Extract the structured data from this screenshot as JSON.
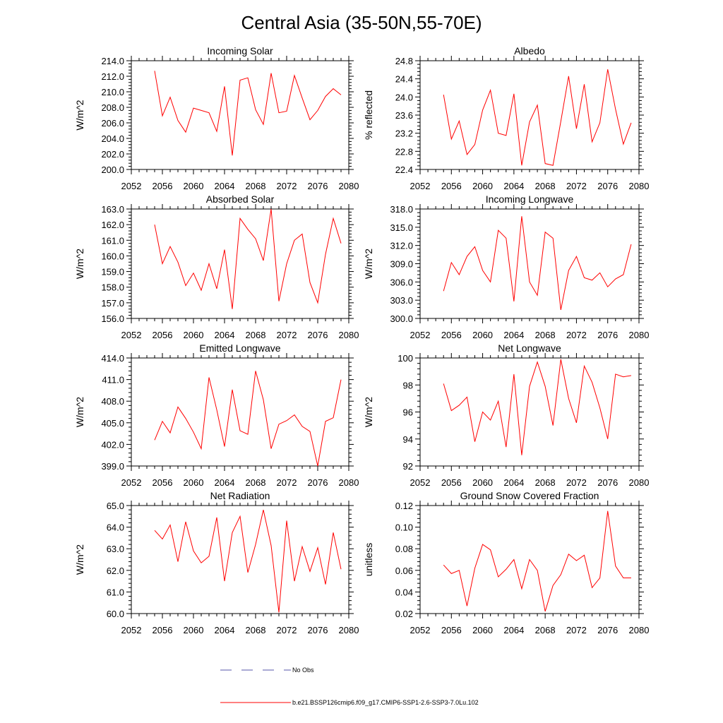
{
  "figure": {
    "title": "Central Asia (35-50N,55-70E)"
  },
  "colors": {
    "series": "#ff0000",
    "obs": "#5555aa",
    "axis": "#000000"
  },
  "legend": [
    {
      "label": "No Obs",
      "style": "dashed",
      "color": "#5555aa"
    },
    {
      "label": "b.e21.BSSP126cmip6.f09_g17.CMIP6-SSP1-2.6-SSP3-7.0Lu.102",
      "style": "solid",
      "color": "#ff0000"
    }
  ],
  "chart_data": [
    {
      "type": "line",
      "title": "Incoming Solar",
      "ylabel": "W/m^2",
      "xlim": [
        2052,
        2080
      ],
      "ylim": [
        200,
        214
      ],
      "xticks": [
        2052,
        2056,
        2060,
        2064,
        2068,
        2072,
        2076,
        2080
      ],
      "yticks": [
        "200.0",
        "202.0",
        "204.0",
        "206.0",
        "208.0",
        "210.0",
        "212.0",
        "214.0"
      ],
      "x": [
        2055,
        2056,
        2057,
        2058,
        2059,
        2060,
        2061,
        2062,
        2063,
        2064,
        2065,
        2066,
        2067,
        2068,
        2069,
        2070,
        2071,
        2072,
        2073,
        2074,
        2075,
        2076,
        2077,
        2078,
        2079
      ],
      "series": [
        {
          "values": [
            212.7,
            206.9,
            209.3,
            206.3,
            204.8,
            207.9,
            207.6,
            207.3,
            204.9,
            210.7,
            201.8,
            211.5,
            211.8,
            207.7,
            205.8,
            212.4,
            207.3,
            207.5,
            212.1,
            209.2,
            206.4,
            207.6,
            209.4,
            210.4,
            209.6
          ]
        }
      ]
    },
    {
      "type": "line",
      "title": "Albedo",
      "ylabel": "% reflected",
      "xlim": [
        2052,
        2080
      ],
      "ylim": [
        22.4,
        24.8
      ],
      "xticks": [
        2052,
        2056,
        2060,
        2064,
        2068,
        2072,
        2076,
        2080
      ],
      "yticks": [
        "22.4",
        "22.8",
        "23.2",
        "23.6",
        "24.0",
        "24.4",
        "24.8"
      ],
      "x": [
        2055,
        2056,
        2057,
        2058,
        2059,
        2060,
        2061,
        2062,
        2063,
        2064,
        2065,
        2066,
        2067,
        2068,
        2069,
        2070,
        2071,
        2072,
        2073,
        2074,
        2075,
        2076,
        2077,
        2078,
        2079
      ],
      "series": [
        {
          "values": [
            24.05,
            23.07,
            23.47,
            22.73,
            22.95,
            23.71,
            24.15,
            23.2,
            23.15,
            24.07,
            22.49,
            23.45,
            23.82,
            22.53,
            22.49,
            23.46,
            24.46,
            23.3,
            24.28,
            23.01,
            23.43,
            24.61,
            23.73,
            22.96,
            23.43
          ]
        }
      ]
    },
    {
      "type": "line",
      "title": "Absorbed Solar",
      "ylabel": "W/m^2",
      "xlim": [
        2052,
        2080
      ],
      "ylim": [
        156,
        163
      ],
      "xticks": [
        2052,
        2056,
        2060,
        2064,
        2068,
        2072,
        2076,
        2080
      ],
      "yticks": [
        "156.0",
        "157.0",
        "158.0",
        "159.0",
        "160.0",
        "161.0",
        "162.0",
        "163.0"
      ],
      "x": [
        2055,
        2056,
        2057,
        2058,
        2059,
        2060,
        2061,
        2062,
        2063,
        2064,
        2065,
        2066,
        2067,
        2068,
        2069,
        2070,
        2071,
        2072,
        2073,
        2074,
        2075,
        2076,
        2077,
        2078,
        2079
      ],
      "series": [
        {
          "values": [
            162.0,
            159.5,
            160.6,
            159.6,
            158.1,
            158.9,
            157.8,
            159.5,
            157.9,
            160.4,
            156.6,
            162.4,
            161.7,
            161.1,
            159.7,
            163.0,
            157.1,
            159.5,
            161.0,
            161.4,
            158.3,
            157.0,
            160.1,
            162.4,
            160.8
          ]
        }
      ]
    },
    {
      "type": "line",
      "title": "Incoming Longwave",
      "ylabel": "W/m^2",
      "xlim": [
        2052,
        2080
      ],
      "ylim": [
        300,
        318
      ],
      "xticks": [
        2052,
        2056,
        2060,
        2064,
        2068,
        2072,
        2076,
        2080
      ],
      "yticks": [
        "300.0",
        "303.0",
        "306.0",
        "309.0",
        "312.0",
        "315.0",
        "318.0"
      ],
      "x": [
        2055,
        2056,
        2057,
        2058,
        2059,
        2060,
        2061,
        2062,
        2063,
        2064,
        2065,
        2066,
        2067,
        2068,
        2069,
        2070,
        2071,
        2072,
        2073,
        2074,
        2075,
        2076,
        2077,
        2078,
        2079
      ],
      "series": [
        {
          "values": [
            304.5,
            309.2,
            307.2,
            310.2,
            311.8,
            307.9,
            306.0,
            314.5,
            313.2,
            302.8,
            316.8,
            306.0,
            303.8,
            314.2,
            313.2,
            301.4,
            307.9,
            310.2,
            306.7,
            306.3,
            307.5,
            305.2,
            306.5,
            307.2,
            312.2
          ]
        }
      ]
    },
    {
      "type": "line",
      "title": "Emitted Longwave",
      "ylabel": "W/m^2",
      "xlim": [
        2052,
        2080
      ],
      "ylim": [
        399,
        414
      ],
      "xticks": [
        2052,
        2056,
        2060,
        2064,
        2068,
        2072,
        2076,
        2080
      ],
      "yticks": [
        "399.0",
        "402.0",
        "405.0",
        "408.0",
        "411.0",
        "414.0"
      ],
      "x": [
        2055,
        2056,
        2057,
        2058,
        2059,
        2060,
        2061,
        2062,
        2063,
        2064,
        2065,
        2066,
        2067,
        2068,
        2069,
        2070,
        2071,
        2072,
        2073,
        2074,
        2075,
        2076,
        2077,
        2078,
        2079
      ],
      "series": [
        {
          "values": [
            402.6,
            405.2,
            403.6,
            407.2,
            405.6,
            403.7,
            401.4,
            411.3,
            406.8,
            401.7,
            409.6,
            403.9,
            403.4,
            412.2,
            408.2,
            401.4,
            404.8,
            405.3,
            406.1,
            404.5,
            403.8,
            399.0,
            405.2,
            405.7,
            411.0
          ]
        }
      ]
    },
    {
      "type": "line",
      "title": "Net Longwave",
      "ylabel": "W/m^2",
      "xlim": [
        2052,
        2080
      ],
      "ylim": [
        92,
        100
      ],
      "xticks": [
        2052,
        2056,
        2060,
        2064,
        2068,
        2072,
        2076,
        2080
      ],
      "yticks": [
        "92",
        "94",
        "96",
        "98",
        "100"
      ],
      "x": [
        2055,
        2056,
        2057,
        2058,
        2059,
        2060,
        2061,
        2062,
        2063,
        2064,
        2065,
        2066,
        2067,
        2068,
        2069,
        2070,
        2071,
        2072,
        2073,
        2074,
        2075,
        2076,
        2077,
        2078,
        2079
      ],
      "series": [
        {
          "values": [
            98.1,
            96.1,
            96.5,
            97.1,
            93.8,
            96.0,
            95.4,
            96.8,
            93.4,
            98.8,
            92.8,
            97.9,
            99.7,
            97.9,
            95.0,
            99.9,
            97.0,
            95.2,
            99.4,
            98.2,
            96.3,
            94.0,
            98.8,
            98.6,
            98.7
          ]
        }
      ]
    },
    {
      "type": "line",
      "title": "Net Radiation",
      "ylabel": "W/m^2",
      "xlim": [
        2052,
        2080
      ],
      "ylim": [
        60,
        65
      ],
      "xticks": [
        2052,
        2056,
        2060,
        2064,
        2068,
        2072,
        2076,
        2080
      ],
      "yticks": [
        "60.0",
        "61.0",
        "62.0",
        "63.0",
        "64.0",
        "65.0"
      ],
      "x": [
        2055,
        2056,
        2057,
        2058,
        2059,
        2060,
        2061,
        2062,
        2063,
        2064,
        2065,
        2066,
        2067,
        2068,
        2069,
        2070,
        2071,
        2072,
        2073,
        2074,
        2075,
        2076,
        2077,
        2078,
        2079
      ],
      "series": [
        {
          "values": [
            63.85,
            63.45,
            64.1,
            62.4,
            64.25,
            62.9,
            62.35,
            62.65,
            64.45,
            61.5,
            63.75,
            64.5,
            61.9,
            63.2,
            64.8,
            63.15,
            60.05,
            64.3,
            61.5,
            63.1,
            61.95,
            63.05,
            61.35,
            63.75,
            62.05
          ]
        }
      ]
    },
    {
      "type": "line",
      "title": "Ground Snow Covered Fraction",
      "ylabel": "unitless",
      "xlim": [
        2052,
        2080
      ],
      "ylim": [
        0.02,
        0.12
      ],
      "xticks": [
        2052,
        2056,
        2060,
        2064,
        2068,
        2072,
        2076,
        2080
      ],
      "yticks": [
        "0.02",
        "0.04",
        "0.06",
        "0.08",
        "0.10",
        "0.12"
      ],
      "x": [
        2055,
        2056,
        2057,
        2058,
        2059,
        2060,
        2061,
        2062,
        2063,
        2064,
        2065,
        2066,
        2067,
        2068,
        2069,
        2070,
        2071,
        2072,
        2073,
        2074,
        2075,
        2076,
        2077,
        2078,
        2079
      ],
      "series": [
        {
          "values": [
            0.065,
            0.057,
            0.06,
            0.027,
            0.062,
            0.084,
            0.079,
            0.054,
            0.061,
            0.07,
            0.043,
            0.07,
            0.06,
            0.022,
            0.046,
            0.056,
            0.075,
            0.069,
            0.074,
            0.044,
            0.053,
            0.115,
            0.064,
            0.053,
            0.053
          ]
        }
      ]
    }
  ]
}
